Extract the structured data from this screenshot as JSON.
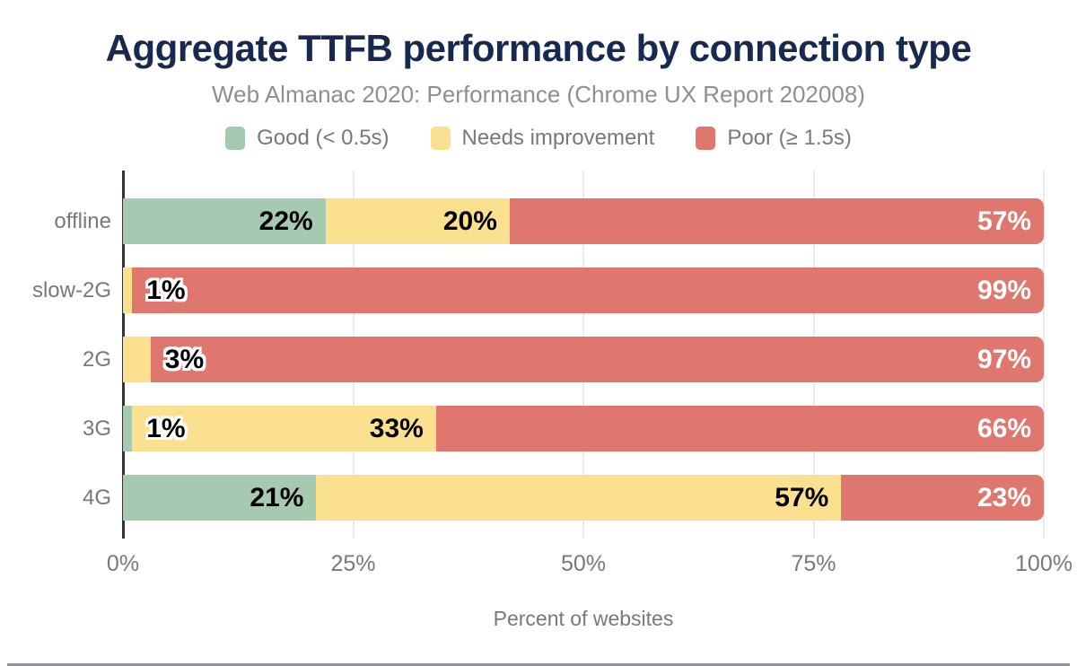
{
  "title": "Aggregate TTFB performance by connection type",
  "subtitle": "Web Almanac 2020: Performance (Chrome UX Report 202008)",
  "colors": {
    "good": "#a5c9b1",
    "needs_improvement": "#fbe090",
    "poor": "#e0776f",
    "title_text": "#17294e",
    "muted_text": "#75797e",
    "grid_line": "#ebebeb",
    "axis_line": "#333333",
    "footer_line": "#8f939b"
  },
  "chart_data": {
    "type": "bar",
    "orientation": "horizontal",
    "stacked": true,
    "title": "Aggregate TTFB performance by connection type",
    "subtitle": "Web Almanac 2020: Performance (Chrome UX Report 202008)",
    "xlabel": "Percent of websites",
    "ylabel": "",
    "xlim": [
      0,
      100
    ],
    "x_ticks": [
      "0%",
      "25%",
      "50%",
      "75%",
      "100%"
    ],
    "grid": "vertical",
    "legend_position": "top",
    "categories": [
      "offline",
      "slow-2G",
      "2G",
      "3G",
      "4G"
    ],
    "series": [
      {
        "name": "Good (< 0.5s)",
        "color": "#a5c9b1",
        "values": [
          22,
          0,
          0,
          1,
          21
        ]
      },
      {
        "name": "Needs improvement",
        "color": "#fbe090",
        "values": [
          20,
          1,
          3,
          33,
          57
        ]
      },
      {
        "name": "Poor (≥ 1.5s)",
        "color": "#e0776f",
        "values": [
          57,
          99,
          97,
          66,
          23
        ]
      }
    ],
    "value_label_suffix": "%"
  }
}
